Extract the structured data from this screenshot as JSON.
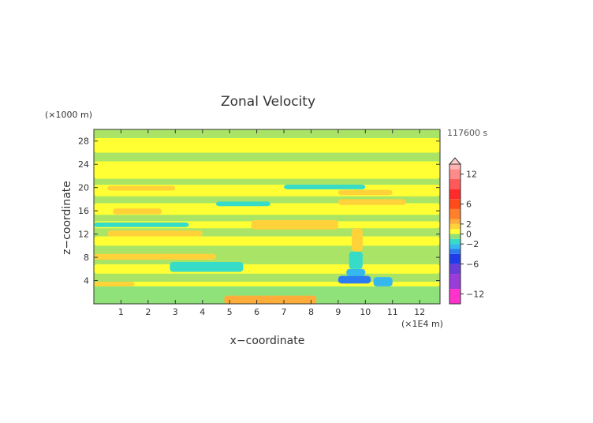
{
  "chart_data": {
    "type": "heatmap",
    "title": "Zonal Velocity",
    "xlabel": "x−coordinate",
    "ylabel": "z−coordinate",
    "x_unit": "(×1E4 m)",
    "y_unit": "(×1000 m)",
    "time_label": "117600 s",
    "xlim": [
      0,
      12.75
    ],
    "ylim": [
      0,
      30
    ],
    "x_ticks": [
      1,
      2,
      3,
      4,
      5,
      6,
      7,
      8,
      9,
      10,
      11,
      12
    ],
    "y_ticks": [
      4,
      8,
      12,
      16,
      20,
      24,
      28
    ],
    "colorbar": {
      "min": -14,
      "max": 14,
      "tick_values": [
        12,
        6,
        2,
        0,
        -2,
        -6,
        -12
      ],
      "tick_labels": [
        "12",
        "6",
        "2",
        "0",
        "−2",
        "−6",
        "−12"
      ],
      "bins": [
        {
          "lo": -14,
          "hi": -11,
          "color": "#ff33cc"
        },
        {
          "lo": -11,
          "hi": -8,
          "color": "#9a3cd8"
        },
        {
          "lo": -8,
          "hi": -6,
          "color": "#6a3cd8"
        },
        {
          "lo": -6,
          "hi": -4,
          "color": "#1f3ce8"
        },
        {
          "lo": -4,
          "hi": -3,
          "color": "#2b7cf0"
        },
        {
          "lo": -3,
          "hi": -2,
          "color": "#35b8ee"
        },
        {
          "lo": -2,
          "hi": -1,
          "color": "#37dcc8"
        },
        {
          "lo": -1,
          "hi": 0,
          "color": "#8fe27a"
        },
        {
          "lo": 0,
          "hi": 1,
          "color": "#ffff33"
        },
        {
          "lo": 1,
          "hi": 2,
          "color": "#ffd23a"
        },
        {
          "lo": 2,
          "hi": 3,
          "color": "#ffad3a"
        },
        {
          "lo": 3,
          "hi": 5,
          "color": "#ff7f2a"
        },
        {
          "lo": 5,
          "hi": 7,
          "color": "#ff4a1a"
        },
        {
          "lo": 7,
          "hi": 9,
          "color": "#ff2a2a"
        },
        {
          "lo": 9,
          "hi": 11,
          "color": "#ff5a5a"
        },
        {
          "lo": 11,
          "hi": 13,
          "color": "#ff8a8a"
        },
        {
          "lo": 13,
          "hi": 14,
          "color": "#ffb3b3"
        }
      ]
    },
    "background_color": "#a9e466",
    "regions": [
      {
        "x": [
          0.0,
          12.75
        ],
        "z": [
          0.0,
          3.0
        ],
        "value": -0.5
      },
      {
        "x": [
          0.0,
          12.75
        ],
        "z": [
          3.0,
          3.8
        ],
        "value": 0.5
      },
      {
        "x": [
          0.0,
          1.5
        ],
        "z": [
          3.0,
          3.8
        ],
        "value": 1.5
      },
      {
        "x": [
          0.0,
          12.75
        ],
        "z": [
          5.2,
          6.8
        ],
        "value": 0.5
      },
      {
        "x": [
          2.8,
          5.5
        ],
        "z": [
          5.5,
          7.2
        ],
        "value": -1.5
      },
      {
        "x": [
          0.0,
          4.5
        ],
        "z": [
          7.6,
          8.6
        ],
        "value": 1.5
      },
      {
        "x": [
          0.0,
          12.75
        ],
        "z": [
          10.0,
          11.6
        ],
        "value": 0.5
      },
      {
        "x": [
          0.5,
          4.0
        ],
        "z": [
          11.6,
          12.6
        ],
        "value": 1.5
      },
      {
        "x": [
          0.0,
          12.75
        ],
        "z": [
          13.0,
          14.2
        ],
        "value": 0.5
      },
      {
        "x": [
          0.0,
          3.5
        ],
        "z": [
          13.2,
          14.0
        ],
        "value": -1.5
      },
      {
        "x": [
          5.8,
          9.0
        ],
        "z": [
          12.8,
          14.4
        ],
        "value": 1.5
      },
      {
        "x": [
          0.0,
          12.75
        ],
        "z": [
          15.3,
          17.3
        ],
        "value": 0.5
      },
      {
        "x": [
          0.7,
          2.5
        ],
        "z": [
          15.4,
          16.4
        ],
        "value": 1.5
      },
      {
        "x": [
          4.5,
          6.5
        ],
        "z": [
          16.8,
          17.6
        ],
        "value": -1.5
      },
      {
        "x": [
          9.0,
          11.5
        ],
        "z": [
          17.0,
          18.0
        ],
        "value": 1.5
      },
      {
        "x": [
          0.0,
          12.75
        ],
        "z": [
          18.5,
          20.5
        ],
        "value": 0.5
      },
      {
        "x": [
          0.5,
          3.0
        ],
        "z": [
          19.5,
          20.3
        ],
        "value": 1.5
      },
      {
        "x": [
          7.0,
          10.0
        ],
        "z": [
          19.7,
          20.5
        ],
        "value": -1.5
      },
      {
        "x": [
          9.0,
          11.0
        ],
        "z": [
          18.7,
          19.6
        ],
        "value": 1.5
      },
      {
        "x": [
          0.0,
          12.75
        ],
        "z": [
          21.5,
          24.5
        ],
        "value": 0.5
      },
      {
        "x": [
          0.0,
          12.75
        ],
        "z": [
          26.0,
          28.5
        ],
        "value": 0.5
      },
      {
        "x": [
          4.8,
          8.2
        ],
        "z": [
          0.0,
          1.4
        ],
        "value": 2.0
      },
      {
        "x": [
          9.0,
          10.2
        ],
        "z": [
          3.5,
          4.8
        ],
        "value": -3.5
      },
      {
        "x": [
          9.3,
          10.0
        ],
        "z": [
          4.8,
          6.0
        ],
        "value": -2.5
      },
      {
        "x": [
          9.4,
          9.9
        ],
        "z": [
          6.0,
          9.0
        ],
        "value": -1.5
      },
      {
        "x": [
          9.5,
          9.9
        ],
        "z": [
          9.0,
          13.0
        ],
        "value": 1.5
      },
      {
        "x": [
          10.3,
          11.0
        ],
        "z": [
          3.0,
          4.6
        ],
        "value": -2.5
      }
    ]
  }
}
